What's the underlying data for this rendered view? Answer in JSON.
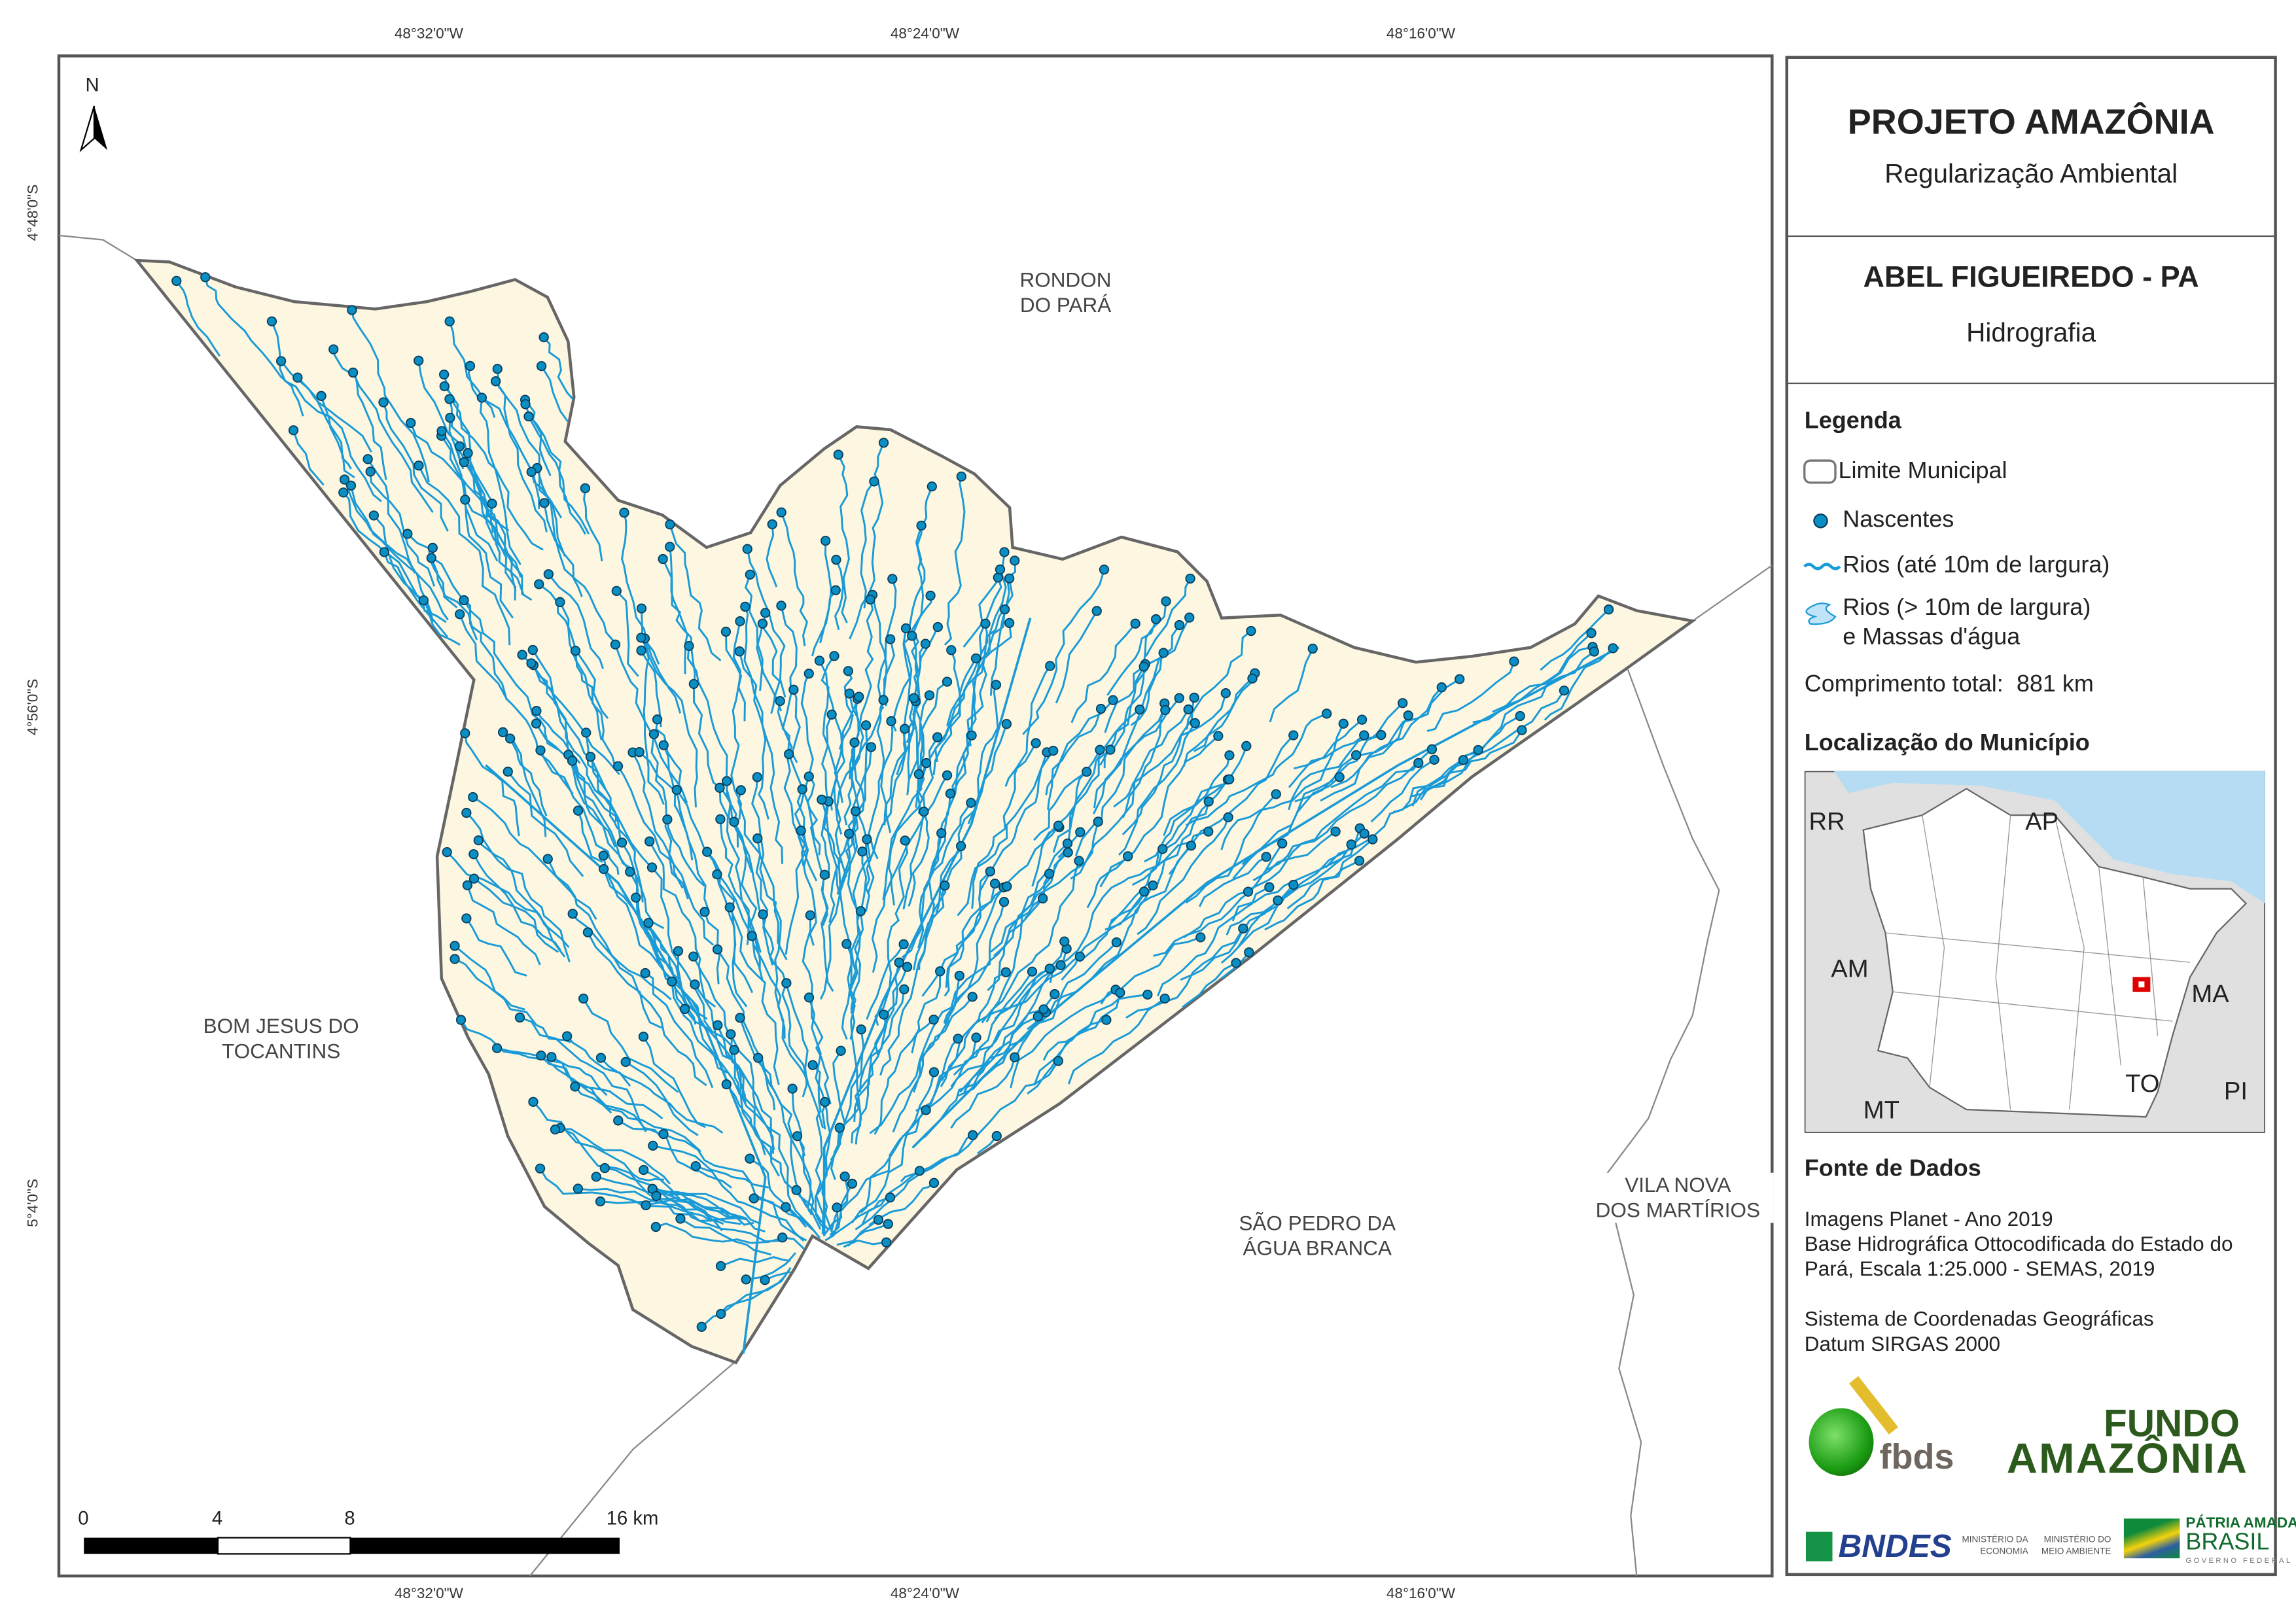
{
  "grid": {
    "top": [
      "48°32'0\"W",
      "48°24'0\"W",
      "48°16'0\"W"
    ],
    "bottom": [
      "48°32'0\"W",
      "48°24'0\"W",
      "48°16'0\"W"
    ],
    "left": [
      "4°48'0\"S",
      "4°56'0\"S",
      "5°4'0\"S"
    ]
  },
  "north_label": "N",
  "places": {
    "rondon": [
      "RONDON",
      "DO PARÁ"
    ],
    "bom_jesus": [
      "BOM JESUS DO",
      "TOCANTINS"
    ],
    "sao_pedro": [
      "SÃO PEDRO DA",
      "ÁGUA BRANCA"
    ],
    "vila_nova": [
      "VILA NOVA",
      "DOS MARTÍRIOS"
    ]
  },
  "scale_bar": {
    "labels": [
      "0",
      "4",
      "8",
      "16 km"
    ]
  },
  "panel": {
    "title": "PROJETO AMAZÔNIA",
    "subtitle": "Regularização Ambiental",
    "municipality": "ABEL FIGUEIREDO - PA",
    "theme": "Hidrografia",
    "legend_title": "Legenda",
    "legend": {
      "limite": "Limite Municipal",
      "nascentes": "Nascentes",
      "rios_small": "Rios (até 10m de largura)",
      "rios_big_1": "Rios (> 10m de largura)",
      "rios_big_2": "e Massas d'água"
    },
    "total_label": "Comprimento total:",
    "total_value": "881 km",
    "location_title": "Localização do Município",
    "inset_labels": {
      "rr": "RR",
      "ap": "AP",
      "am": "AM",
      "ma": "MA",
      "to": "TO",
      "pi": "PI",
      "mt": "MT"
    },
    "sources_title": "Fonte de Dados",
    "sources": [
      "Imagens Planet - Ano 2019",
      "Base Hidrográfica Ottocodificada do Estado do",
      "Pará, Escala 1:25.000 - SEMAS, 2019",
      "Sistema de Coordenadas Geográficas",
      "Datum SIRGAS 2000"
    ],
    "logos": {
      "fbds": "fbds",
      "fundo_1": "FUNDO",
      "fundo_2": "AMAZÔNIA",
      "bndes": "BNDES",
      "min_eco_1": "MINISTÉRIO DA",
      "min_eco_2": "ECONOMIA",
      "min_ma_1": "MINISTÉRIO DO",
      "min_ma_2": "MEIO AMBIENTE",
      "patria_1": "PÁTRIA AMADA",
      "patria_2": "BRASIL",
      "patria_3": "GOVERNO FEDERAL"
    }
  },
  "colors": {
    "land": "#fdf7e1",
    "river": "#1a9ad6",
    "spring_fill": "#0a8fc4",
    "spring_stroke": "#0b3d5a",
    "boundary": "#666666",
    "sea": "#b5dcf2",
    "inset_bg": "#e0e0e0",
    "highlight": "#e00000"
  }
}
